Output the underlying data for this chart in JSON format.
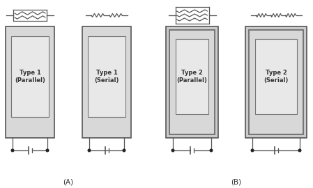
{
  "fig_width": 4.49,
  "fig_height": 2.7,
  "dpi": 100,
  "bg_color": "#ffffff",
  "box_edge_color": "#555555",
  "fill_color": "#e8e8e8",
  "mid_fill_color": "#d5d5d5",
  "line_color": "#555555",
  "text_color": "#333333",
  "label_A": "(A)",
  "label_B": "(B)",
  "type1_parallel": "Type 1\n(Parallel)",
  "type1_serial": "Type 1\n(Serial)",
  "type2_parallel": "Type 2\n(Parallel)",
  "type2_serial": "Type 2\n(Serial)",
  "font_size": 6.0,
  "label_font_size": 7.5
}
